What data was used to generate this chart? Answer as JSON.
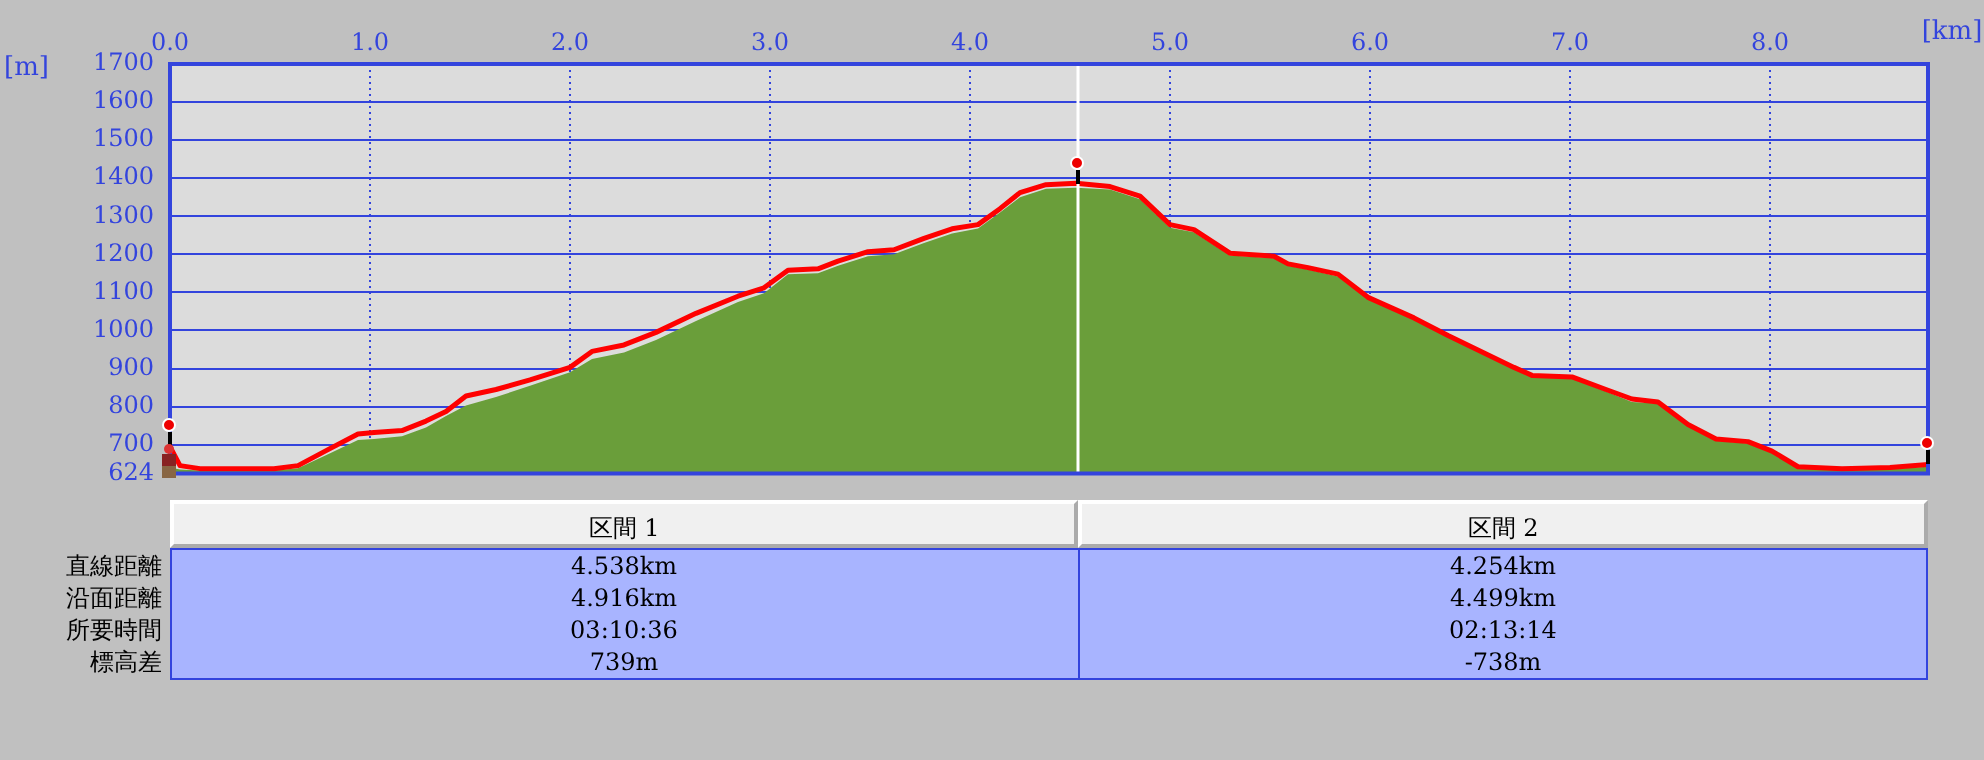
{
  "chart_data": {
    "type": "area",
    "xlabel": "[km]",
    "ylabel": "[m]",
    "xlim": [
      0,
      8.79
    ],
    "xticks": [
      {
        "value": 0,
        "label": "0.0"
      },
      {
        "value": 1,
        "label": "1.0"
      },
      {
        "value": 2,
        "label": "2.0"
      },
      {
        "value": 3,
        "label": "3.0"
      },
      {
        "value": 4,
        "label": "4.0"
      },
      {
        "value": 5,
        "label": "5.0"
      },
      {
        "value": 6,
        "label": "6.0"
      },
      {
        "value": 7,
        "label": "7.0"
      },
      {
        "value": 8,
        "label": "8.0"
      }
    ],
    "ylim": [
      624,
      1700
    ],
    "yticks": [
      624,
      700,
      800,
      900,
      1000,
      1100,
      1200,
      1300,
      1400,
      1500,
      1600,
      1700
    ],
    "grid": true,
    "legend": false,
    "marker": "none",
    "x": [
      0,
      0.05,
      0.15,
      0.52,
      0.64,
      0.79,
      0.94,
      1.02,
      1.16,
      1.28,
      1.38,
      1.48,
      1.63,
      1.8,
      2.0,
      2.11,
      2.27,
      2.43,
      2.63,
      2.84,
      2.97,
      3.09,
      3.24,
      3.34,
      3.49,
      3.62,
      3.77,
      3.91,
      4.04,
      4.15,
      4.25,
      4.38,
      4.53,
      4.7,
      4.85,
      5.0,
      5.12,
      5.3,
      5.52,
      5.59,
      5.69,
      5.84,
      5.99,
      6.22,
      6.39,
      6.72,
      6.81,
      7.01,
      7.18,
      7.31,
      7.44,
      7.59,
      7.73,
      7.89,
      8.01,
      8.14,
      8.36,
      8.6,
      8.79
    ],
    "series": [
      {
        "color": "#6a9e3a",
        "values": [
          640,
          635,
          632,
          632,
          638,
          675,
          712,
          715,
          722,
          745,
          775,
          803,
          825,
          855,
          890,
          925,
          942,
          975,
          1025,
          1075,
          1098,
          1148,
          1150,
          1170,
          1195,
          1200,
          1230,
          1255,
          1268,
          1310,
          1350,
          1372,
          1375,
          1370,
          1345,
          1270,
          1258,
          1197,
          1190,
          1170,
          1160,
          1142,
          1082,
          1028,
          982,
          898,
          877,
          874,
          840,
          812,
          808,
          748,
          710,
          703,
          678,
          638,
          633,
          636,
          642
        ]
      },
      {
        "type": "line",
        "color": "#ff0000",
        "values": [
          695,
          645,
          637,
          637,
          645,
          687,
          728,
          732,
          737,
          762,
          787,
          828,
          845,
          870,
          903,
          945,
          962,
          995,
          1045,
          1090,
          1112,
          1158,
          1162,
          1182,
          1207,
          1212,
          1242,
          1267,
          1278,
          1320,
          1362,
          1383,
          1387,
          1378,
          1353,
          1278,
          1265,
          1203,
          1195,
          1175,
          1165,
          1148,
          1087,
          1033,
          987,
          903,
          882,
          878,
          845,
          820,
          812,
          753,
          715,
          708,
          683,
          642,
          637,
          640,
          648
        ]
      }
    ],
    "ref_lines": [
      {
        "axis": "x",
        "value": 4.54,
        "color": "#ffffff"
      }
    ],
    "annotations": [
      "区間 1",
      "区間 2",
      "直線距離",
      "4.538km",
      "4.254km",
      "沿面距離",
      "4.916km",
      "4.499km",
      "所要時間",
      "03:10:36",
      "02:13:14",
      "標高差",
      "739m",
      "-738m"
    ]
  }
}
